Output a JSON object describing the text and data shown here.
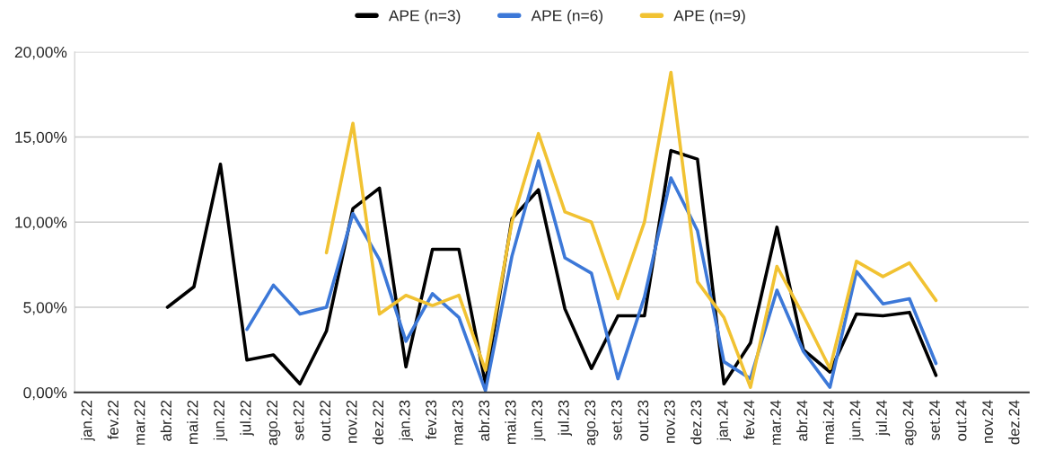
{
  "chart_data": {
    "type": "line",
    "categories": [
      "jan.22",
      "fev.22",
      "mar.22",
      "abr.22",
      "mai.22",
      "jun.22",
      "jul.22",
      "ago.22",
      "set.22",
      "out.22",
      "nov.22",
      "dez.22",
      "jan.23",
      "fev.23",
      "mar.23",
      "abr.23",
      "mai.23",
      "jun.23",
      "jul.23",
      "ago.23",
      "set.23",
      "out.23",
      "nov.23",
      "dez.23",
      "jan.24",
      "fev.24",
      "mar.24",
      "abr.24",
      "mai.24",
      "jun.24",
      "jul.24",
      "ago.24",
      "set.24",
      "out.24",
      "nov.24",
      "dez.24"
    ],
    "series": [
      {
        "name": "APE (n=3)",
        "color": "#000000",
        "values": [
          null,
          null,
          null,
          5.0,
          6.2,
          13.4,
          1.9,
          2.2,
          0.5,
          3.6,
          10.8,
          12.0,
          1.5,
          8.4,
          8.4,
          0.5,
          10.2,
          11.9,
          4.9,
          1.4,
          4.5,
          4.5,
          14.2,
          13.7,
          0.5,
          2.9,
          9.7,
          2.5,
          1.2,
          4.6,
          4.5,
          4.7,
          1.0,
          null,
          null,
          null
        ]
      },
      {
        "name": "APE (n=6)",
        "color": "#3c78d8",
        "values": [
          null,
          null,
          null,
          null,
          null,
          null,
          3.7,
          6.3,
          4.6,
          5.0,
          10.5,
          7.8,
          3.0,
          5.8,
          4.4,
          0.1,
          8.0,
          13.6,
          7.9,
          7.0,
          0.8,
          5.6,
          12.6,
          9.5,
          1.8,
          0.8,
          6.0,
          2.4,
          0.3,
          7.1,
          5.2,
          5.5,
          1.7,
          null,
          null,
          null
        ]
      },
      {
        "name": "APE (n=9)",
        "color": "#f1c232",
        "values": [
          null,
          null,
          null,
          null,
          null,
          null,
          null,
          null,
          null,
          8.2,
          15.8,
          4.6,
          5.7,
          5.1,
          5.7,
          1.3,
          10.0,
          15.2,
          10.6,
          10.0,
          5.5,
          10.0,
          18.8,
          6.5,
          4.4,
          0.3,
          7.4,
          4.5,
          1.4,
          7.7,
          6.8,
          7.6,
          5.4,
          null,
          null,
          null
        ]
      }
    ],
    "ylim": [
      0,
      20
    ],
    "yticks": [
      {
        "value": 0,
        "label": "0,00%"
      },
      {
        "value": 5,
        "label": "5,00%"
      },
      {
        "value": 10,
        "label": "10,00%"
      },
      {
        "value": 15,
        "label": "15,00%"
      },
      {
        "value": 20,
        "label": "20,00%"
      }
    ],
    "grid": "y",
    "legend": "top",
    "marker": "none",
    "line_style": "solid"
  }
}
